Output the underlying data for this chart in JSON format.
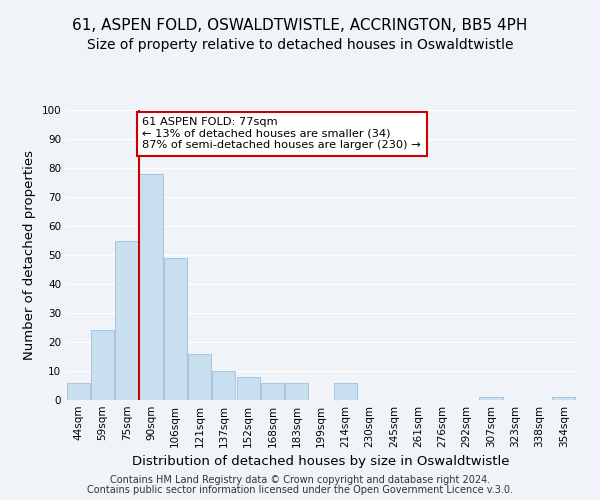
{
  "title": "61, ASPEN FOLD, OSWALDTWISTLE, ACCRINGTON, BB5 4PH",
  "subtitle": "Size of property relative to detached houses in Oswaldtwistle",
  "xlabel": "Distribution of detached houses by size in Oswaldtwistle",
  "ylabel": "Number of detached properties",
  "bar_color": "#c8dff0",
  "bar_edge_color": "#a0c0dc",
  "bins": [
    "44sqm",
    "59sqm",
    "75sqm",
    "90sqm",
    "106sqm",
    "121sqm",
    "137sqm",
    "152sqm",
    "168sqm",
    "183sqm",
    "199sqm",
    "214sqm",
    "230sqm",
    "245sqm",
    "261sqm",
    "276sqm",
    "292sqm",
    "307sqm",
    "323sqm",
    "338sqm",
    "354sqm"
  ],
  "values": [
    6,
    24,
    55,
    78,
    49,
    16,
    10,
    8,
    6,
    6,
    0,
    6,
    0,
    0,
    0,
    0,
    0,
    1,
    0,
    0,
    1
  ],
  "ylim": [
    0,
    100
  ],
  "yticks": [
    0,
    10,
    20,
    30,
    40,
    50,
    60,
    70,
    80,
    90,
    100
  ],
  "vline_x": 2.5,
  "vline_color": "#cc0000",
  "annotation_text": "61 ASPEN FOLD: 77sqm\n← 13% of detached houses are smaller (34)\n87% of semi-detached houses are larger (230) →",
  "annotation_box_color": "white",
  "annotation_box_edge": "#cc0000",
  "footer1": "Contains HM Land Registry data © Crown copyright and database right 2024.",
  "footer2": "Contains public sector information licensed under the Open Government Licence v.3.0.",
  "background_color": "#f0f4f8",
  "grid_color": "white",
  "title_fontsize": 11,
  "subtitle_fontsize": 10,
  "axis_label_fontsize": 9.5,
  "tick_fontsize": 7.5,
  "footer_fontsize": 7.0
}
